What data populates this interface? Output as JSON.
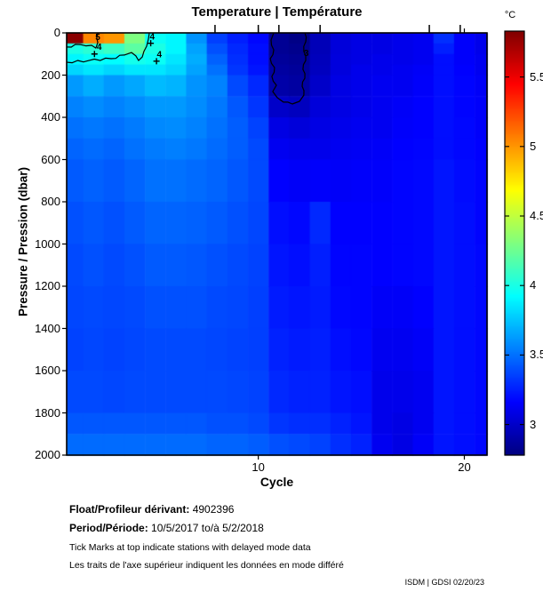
{
  "page": {
    "title": "Temperature | Température",
    "background": "#ffffff"
  },
  "colorbar": {
    "unit": "°C",
    "tick_values": [
      3,
      3.5,
      4,
      4.5,
      5,
      5.5
    ],
    "vmin": 2.78,
    "vmax": 5.83,
    "colormap": "jet"
  },
  "axes": {
    "xlabel": "Cycle",
    "ylabel": "Pressure / Pression (dbar)",
    "x_tick_values": [
      10,
      20
    ],
    "y_tick_values": [
      0,
      200,
      400,
      600,
      800,
      1000,
      1200,
      1400,
      1600,
      1800,
      2000
    ],
    "xlim": [
      0.7,
      21.1
    ],
    "ylim": [
      0,
      2000
    ]
  },
  "chart_data": {
    "type": "heatmap",
    "title": "Temperature | Température",
    "xlabel": "Cycle",
    "ylabel": "Pressure / Pression (dbar)",
    "colormap": "jet",
    "vmin": 2.78,
    "vmax": 5.83,
    "xlim": [
      0.7,
      21.1
    ],
    "ylim": [
      0,
      2000
    ],
    "y_axis_reversed": true,
    "colorbar_unit": "°C",
    "colorbar_ticks": [
      3,
      3.5,
      4,
      4.5,
      5,
      5.5
    ],
    "cycles": [
      1,
      2,
      3,
      4,
      5,
      6,
      7,
      8,
      9,
      10,
      11,
      12,
      13,
      14,
      15,
      16,
      17,
      18,
      19,
      20,
      21
    ],
    "pressure_edges": [
      0,
      50,
      100,
      150,
      200,
      300,
      400,
      500,
      600,
      800,
      1000,
      1200,
      1400,
      1600,
      1800,
      1900,
      2000
    ],
    "temperature_grid": [
      [
        5.8,
        5.05,
        5.0,
        4.3,
        3.95,
        3.9,
        3.6,
        3.35,
        3.25,
        3.18,
        2.84,
        2.8,
        2.95,
        3.05,
        3.08,
        3.08,
        3.1,
        3.12,
        3.3,
        3.15,
        3.1
      ],
      [
        4.0,
        4.05,
        4.1,
        4.2,
        4.0,
        3.9,
        3.65,
        3.4,
        3.28,
        3.2,
        2.84,
        2.82,
        2.95,
        3.05,
        3.08,
        3.08,
        3.1,
        3.12,
        3.25,
        3.15,
        3.1
      ],
      [
        3.9,
        3.95,
        3.92,
        3.98,
        3.95,
        3.85,
        3.68,
        3.45,
        3.3,
        3.2,
        2.86,
        2.84,
        2.96,
        3.06,
        3.08,
        3.1,
        3.1,
        3.12,
        3.2,
        3.15,
        3.12
      ],
      [
        3.8,
        3.85,
        3.8,
        3.85,
        3.85,
        3.8,
        3.65,
        3.5,
        3.32,
        3.22,
        2.88,
        2.86,
        2.97,
        3.06,
        3.1,
        3.1,
        3.12,
        3.14,
        3.2,
        3.16,
        3.12
      ],
      [
        3.62,
        3.68,
        3.62,
        3.66,
        3.72,
        3.7,
        3.6,
        3.55,
        3.38,
        3.28,
        2.9,
        2.88,
        3.0,
        3.08,
        3.1,
        3.12,
        3.12,
        3.15,
        3.2,
        3.17,
        3.14
      ],
      [
        3.55,
        3.58,
        3.55,
        3.58,
        3.62,
        3.62,
        3.58,
        3.52,
        3.42,
        3.32,
        3.0,
        2.97,
        3.05,
        3.08,
        3.1,
        3.12,
        3.14,
        3.16,
        3.2,
        3.17,
        3.15
      ],
      [
        3.5,
        3.52,
        3.5,
        3.53,
        3.57,
        3.58,
        3.55,
        3.5,
        3.44,
        3.36,
        3.08,
        3.05,
        3.08,
        3.1,
        3.12,
        3.12,
        3.15,
        3.16,
        3.2,
        3.18,
        3.15
      ],
      [
        3.46,
        3.48,
        3.46,
        3.5,
        3.53,
        3.54,
        3.52,
        3.48,
        3.44,
        3.38,
        3.12,
        3.1,
        3.1,
        3.12,
        3.13,
        3.14,
        3.16,
        3.17,
        3.2,
        3.18,
        3.16
      ],
      [
        3.43,
        3.45,
        3.43,
        3.46,
        3.5,
        3.5,
        3.48,
        3.46,
        3.42,
        3.38,
        3.16,
        3.14,
        3.15,
        3.14,
        3.15,
        3.15,
        3.17,
        3.18,
        3.22,
        3.19,
        3.17
      ],
      [
        3.4,
        3.42,
        3.4,
        3.43,
        3.46,
        3.46,
        3.45,
        3.43,
        3.4,
        3.37,
        3.2,
        3.18,
        3.28,
        3.16,
        3.16,
        3.16,
        3.17,
        3.18,
        3.22,
        3.2,
        3.17
      ],
      [
        3.38,
        3.4,
        3.38,
        3.4,
        3.43,
        3.43,
        3.42,
        3.4,
        3.38,
        3.36,
        3.22,
        3.2,
        3.25,
        3.17,
        3.17,
        3.16,
        3.17,
        3.18,
        3.22,
        3.2,
        3.18
      ],
      [
        3.37,
        3.38,
        3.37,
        3.38,
        3.4,
        3.4,
        3.4,
        3.38,
        3.37,
        3.35,
        3.24,
        3.22,
        3.24,
        3.18,
        3.17,
        3.14,
        3.14,
        3.16,
        3.22,
        3.2,
        3.18
      ],
      [
        3.36,
        3.37,
        3.36,
        3.37,
        3.38,
        3.38,
        3.38,
        3.37,
        3.36,
        3.35,
        3.26,
        3.24,
        3.25,
        3.2,
        3.18,
        3.12,
        3.12,
        3.14,
        3.22,
        3.2,
        3.18
      ],
      [
        3.38,
        3.38,
        3.37,
        3.38,
        3.38,
        3.38,
        3.38,
        3.38,
        3.37,
        3.36,
        3.28,
        3.26,
        3.26,
        3.22,
        3.2,
        3.1,
        3.1,
        3.12,
        3.22,
        3.2,
        3.18
      ],
      [
        3.42,
        3.42,
        3.42,
        3.42,
        3.42,
        3.42,
        3.42,
        3.4,
        3.4,
        3.38,
        3.32,
        3.3,
        3.3,
        3.26,
        3.22,
        3.1,
        3.08,
        3.12,
        3.22,
        3.2,
        3.18
      ],
      [
        3.48,
        3.48,
        3.48,
        3.48,
        3.48,
        3.48,
        3.48,
        3.46,
        3.46,
        3.44,
        3.4,
        3.38,
        3.36,
        3.3,
        3.26,
        3.12,
        3.08,
        3.14,
        3.22,
        3.2,
        3.18
      ]
    ],
    "contours": [
      {
        "level": 5,
        "points": [
          [
            0.7,
            67
          ],
          [
            1.35,
            55
          ],
          [
            1.91,
            59
          ],
          [
            2.12,
            72
          ],
          [
            2.21,
            46
          ],
          [
            2.21,
            0
          ]
        ]
      },
      {
        "level": 4,
        "points": [
          [
            0.7,
            139
          ],
          [
            1.78,
            131
          ],
          [
            2.86,
            122
          ],
          [
            3.5,
            105
          ],
          [
            3.85,
            93
          ],
          [
            4.06,
            109
          ],
          [
            4.19,
            131
          ],
          [
            4.37,
            114
          ],
          [
            4.45,
            88
          ],
          [
            4.58,
            63
          ],
          [
            4.67,
            29
          ],
          [
            4.71,
            0
          ]
        ]
      },
      {
        "level": 3,
        "points": [
          [
            10.75,
            0
          ],
          [
            10.62,
            34
          ],
          [
            10.75,
            80
          ],
          [
            10.58,
            122
          ],
          [
            10.79,
            164
          ],
          [
            10.66,
            206
          ],
          [
            10.88,
            248
          ],
          [
            10.7,
            278
          ],
          [
            10.92,
            307
          ],
          [
            11.22,
            328
          ],
          [
            11.65,
            337
          ],
          [
            12.0,
            324
          ],
          [
            12.21,
            295
          ],
          [
            12.13,
            253
          ],
          [
            12.26,
            215
          ],
          [
            12.17,
            173
          ],
          [
            12.3,
            131
          ],
          [
            12.21,
            88
          ],
          [
            12.3,
            42
          ],
          [
            12.26,
            0
          ]
        ]
      }
    ],
    "contour_labels": [
      {
        "text": "5",
        "cycle": 2.21,
        "pressure": 18
      },
      {
        "text": "4",
        "cycle": 4.85,
        "pressure": 16
      },
      {
        "text": "4",
        "cycle": 2.28,
        "pressure": 66
      },
      {
        "text": "4",
        "cycle": 5.2,
        "pressure": 100
      },
      {
        "text": "3",
        "cycle": 12.33,
        "pressure": 95
      }
    ],
    "plus_marks": [
      {
        "cycle": 4.78,
        "pressure": 49
      },
      {
        "cycle": 2.05,
        "pressure": 100
      },
      {
        "cycle": 5.06,
        "pressure": 134
      }
    ],
    "delayed_mode_tick_cycles": [
      7.9,
      10.0,
      11.0,
      13.0,
      18.3,
      19.8
    ]
  },
  "footer": {
    "float_label": "Float/Profileur dérivant:",
    "float_value": "4902396",
    "period_label": "Period/Période:",
    "period_value": "10/5/2017  to/à  5/2/2018",
    "note_en": "Tick Marks at top indicate stations with delayed mode data",
    "note_fr": "Les traits de l'axe supérieur indiquent les données en mode différé",
    "credit": "ISDM | GDSI 02/20/23"
  }
}
